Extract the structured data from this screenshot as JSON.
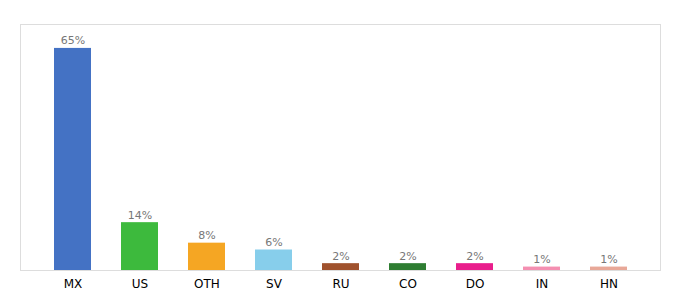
{
  "chart_data": {
    "type": "bar",
    "categories": [
      "MX",
      "US",
      "OTH",
      "SV",
      "RU",
      "CO",
      "DO",
      "IN",
      "HN"
    ],
    "values": [
      65,
      14,
      8,
      6,
      2,
      2,
      2,
      1,
      1
    ],
    "value_labels": [
      "65%",
      "14%",
      "8%",
      "6%",
      "2%",
      "2%",
      "2%",
      "1%",
      "1%"
    ],
    "colors": [
      "#4472c4",
      "#3dba3d",
      "#f5a623",
      "#87ceeb",
      "#a0522d",
      "#2e7d32",
      "#e91e8c",
      "#f48fb1",
      "#e8a898"
    ],
    "ylim": [
      0,
      72
    ],
    "data_labels": true,
    "tick_labels": "x",
    "grid": false
  }
}
